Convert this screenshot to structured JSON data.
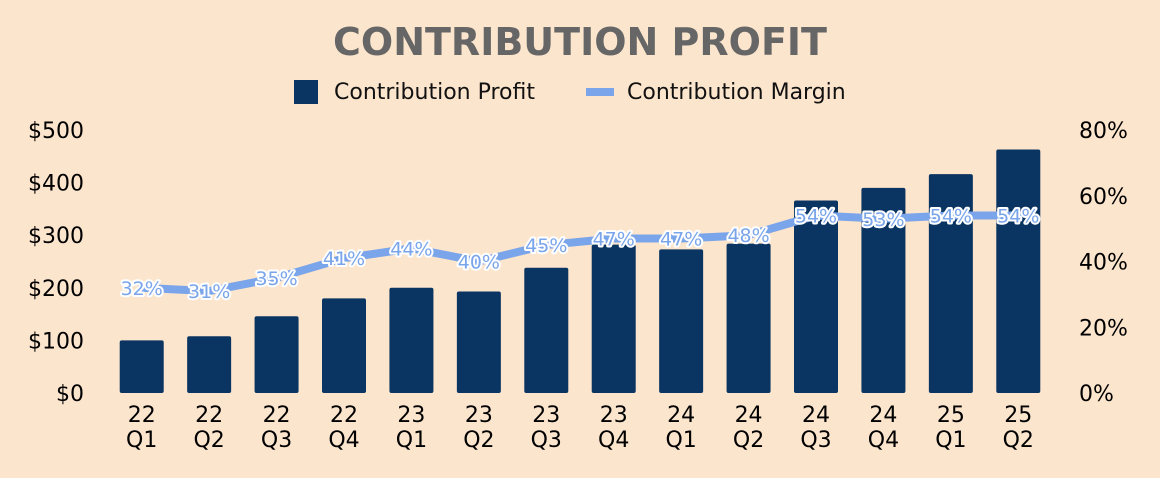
{
  "chart_data": {
    "type": "bar",
    "title": "CONTRIBUTION PROFIT",
    "categories": [
      [
        "22",
        "Q1"
      ],
      [
        "22",
        "Q2"
      ],
      [
        "22",
        "Q3"
      ],
      [
        "22",
        "Q4"
      ],
      [
        "23",
        "Q1"
      ],
      [
        "23",
        "Q2"
      ],
      [
        "23",
        "Q3"
      ],
      [
        "23",
        "Q4"
      ],
      [
        "24",
        "Q1"
      ],
      [
        "24",
        "Q2"
      ],
      [
        "24",
        "Q3"
      ],
      [
        "24",
        "Q4"
      ],
      [
        "25",
        "Q1"
      ],
      [
        "25",
        "Q2"
      ]
    ],
    "series": [
      {
        "name": "Contribution Profit",
        "type": "bar",
        "axis": "left",
        "color": "#0a3461",
        "values": [
          100,
          108,
          146,
          180,
          200,
          193,
          238,
          282,
          273,
          284,
          366,
          390,
          416,
          463
        ]
      },
      {
        "name": "Contribution Margin",
        "type": "line",
        "axis": "right",
        "color": "#7aa5ea",
        "values": [
          32,
          31,
          35,
          41,
          44,
          40,
          45,
          47,
          47,
          48,
          54,
          53,
          54,
          54
        ],
        "labels": [
          "32%",
          "31%",
          "35%",
          "41%",
          "44%",
          "40%",
          "45%",
          "47%",
          "47%",
          "48%",
          "54%",
          "53%",
          "54%",
          "54%"
        ]
      }
    ],
    "y_left": {
      "ylim": [
        0,
        500
      ],
      "ticks": [
        0,
        100,
        200,
        300,
        400,
        500
      ],
      "tick_labels": [
        "$0",
        "$100",
        "$200",
        "$300",
        "$400",
        "$500"
      ]
    },
    "y_right": {
      "ylim": [
        0,
        80
      ],
      "ticks": [
        0,
        20,
        40,
        60,
        80
      ],
      "tick_labels": [
        "0%",
        "20%",
        "40%",
        "60%",
        "80%"
      ]
    },
    "legend": {
      "placement": "top-center"
    },
    "grid": false,
    "background": "#fce5cd"
  }
}
